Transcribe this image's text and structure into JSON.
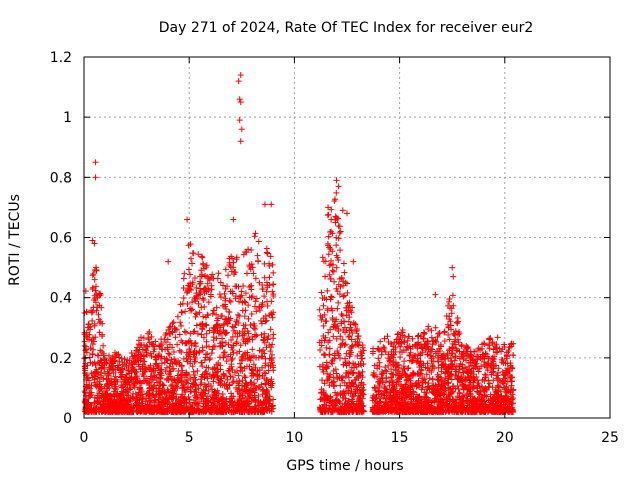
{
  "chart_data": {
    "type": "scatter",
    "title": "Day 271 of 2024, Rate Of TEC Index for receiver eur2",
    "xlabel": "GPS time / hours",
    "ylabel": "ROTI / TECUs",
    "xlim": [
      0,
      25
    ],
    "ylim": [
      0,
      1.2
    ],
    "xticks": [
      0,
      5,
      10,
      15,
      20,
      25
    ],
    "xtick_labels": [
      "0",
      "5",
      "10",
      "15",
      "20",
      "25"
    ],
    "yticks": [
      0,
      0.2,
      0.4,
      0.6,
      0.8,
      1.0,
      1.2
    ],
    "ytick_labels": [
      "0",
      "0.2",
      "0.4",
      "0.6",
      "0.8",
      "1",
      "1.2"
    ],
    "grid": true,
    "marker": "plus",
    "color": "#ff0000",
    "segments": [
      {
        "x_start": 0.0,
        "x_end": 9.0
      },
      {
        "x_start": 11.2,
        "x_end": 13.3
      },
      {
        "x_start": 13.7,
        "x_end": 20.4
      }
    ],
    "envelope": [
      [
        0.0,
        0.5
      ],
      [
        0.25,
        0.3
      ],
      [
        0.5,
        0.6
      ],
      [
        0.75,
        0.45
      ],
      [
        1.0,
        0.2
      ],
      [
        1.5,
        0.22
      ],
      [
        2.0,
        0.2
      ],
      [
        2.5,
        0.25
      ],
      [
        3.0,
        0.3
      ],
      [
        3.5,
        0.25
      ],
      [
        4.0,
        0.3
      ],
      [
        4.5,
        0.35
      ],
      [
        5.0,
        0.6
      ],
      [
        5.5,
        0.55
      ],
      [
        6.0,
        0.5
      ],
      [
        6.5,
        0.5
      ],
      [
        7.0,
        0.55
      ],
      [
        7.5,
        0.55
      ],
      [
        8.0,
        0.6
      ],
      [
        8.5,
        0.65
      ],
      [
        9.0,
        0.5
      ],
      [
        11.2,
        0.5
      ],
      [
        11.5,
        0.7
      ],
      [
        12.0,
        0.75
      ],
      [
        12.5,
        0.45
      ],
      [
        13.0,
        0.3
      ],
      [
        13.3,
        0.25
      ],
      [
        13.7,
        0.25
      ],
      [
        14.0,
        0.28
      ],
      [
        14.5,
        0.28
      ],
      [
        15.0,
        0.3
      ],
      [
        15.5,
        0.28
      ],
      [
        16.0,
        0.28
      ],
      [
        16.5,
        0.32
      ],
      [
        17.0,
        0.28
      ],
      [
        17.5,
        0.45
      ],
      [
        18.0,
        0.25
      ],
      [
        18.5,
        0.22
      ],
      [
        19.0,
        0.25
      ],
      [
        19.5,
        0.28
      ],
      [
        20.0,
        0.25
      ],
      [
        20.4,
        0.25
      ]
    ],
    "outliers": [
      {
        "x": 0.55,
        "y": 0.85
      },
      {
        "x": 0.55,
        "y": 0.8
      },
      {
        "x": 0.4,
        "y": 0.59
      },
      {
        "x": 0.5,
        "y": 0.58
      },
      {
        "x": 7.45,
        "y": 1.14
      },
      {
        "x": 7.35,
        "y": 1.12
      },
      {
        "x": 7.4,
        "y": 1.06
      },
      {
        "x": 7.45,
        "y": 1.05
      },
      {
        "x": 7.4,
        "y": 0.99
      },
      {
        "x": 7.5,
        "y": 0.96
      },
      {
        "x": 7.45,
        "y": 0.92
      },
      {
        "x": 11.6,
        "y": 0.7
      },
      {
        "x": 12.0,
        "y": 0.79
      },
      {
        "x": 12.1,
        "y": 0.77
      },
      {
        "x": 12.3,
        "y": 0.69
      },
      {
        "x": 12.5,
        "y": 0.68
      },
      {
        "x": 8.6,
        "y": 0.71
      },
      {
        "x": 8.9,
        "y": 0.71
      },
      {
        "x": 7.1,
        "y": 0.66
      },
      {
        "x": 4.9,
        "y": 0.66
      },
      {
        "x": 17.5,
        "y": 0.5
      },
      {
        "x": 17.55,
        "y": 0.47
      },
      {
        "x": 16.7,
        "y": 0.41
      },
      {
        "x": 12.2,
        "y": 0.62
      },
      {
        "x": 12.8,
        "y": 0.52
      },
      {
        "x": 4.0,
        "y": 0.52
      }
    ]
  }
}
